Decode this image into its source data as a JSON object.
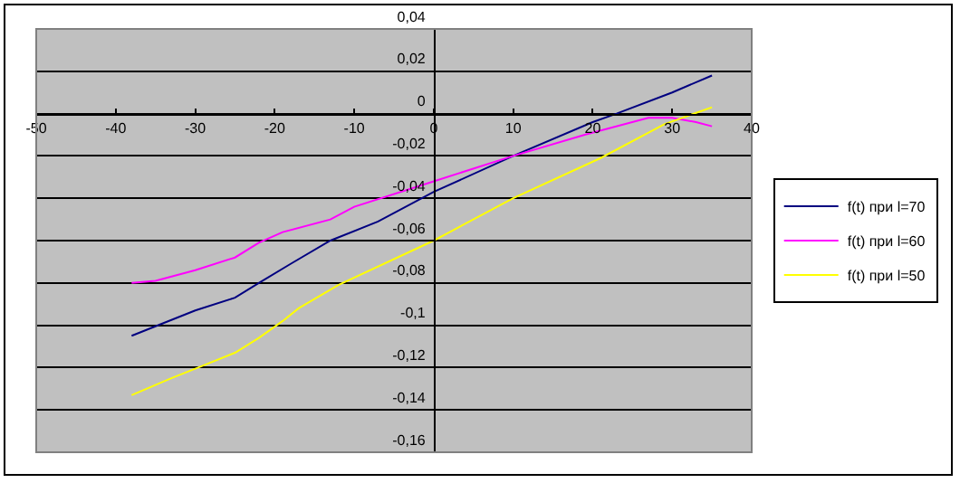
{
  "chart_data": {
    "type": "line",
    "xlim": [
      -50,
      40
    ],
    "xticks": [
      -50,
      -40,
      -30,
      -20,
      -10,
      0,
      10,
      20,
      30,
      40
    ],
    "ylim": [
      -0.16,
      0.04
    ],
    "yticks": [
      {
        "value": 0.04,
        "label": "0,04"
      },
      {
        "value": 0.02,
        "label": "0,02"
      },
      0,
      {
        "value": -0.02,
        "label": "-0,02"
      },
      {
        "value": -0.04,
        "label": "-0,04"
      },
      {
        "value": -0.06,
        "label": "-0,06"
      },
      {
        "value": -0.08,
        "label": "-0,08"
      },
      {
        "value": -0.1,
        "label": "-0,1"
      },
      {
        "value": -0.12,
        "label": "-0,12"
      },
      {
        "value": -0.14,
        "label": "-0,14"
      },
      {
        "value": -0.16,
        "label": "-0,16"
      }
    ],
    "grid": "y",
    "legend": "right",
    "marker": "none",
    "line_style": "solid",
    "series": [
      {
        "name": "f(t) при l=70",
        "color": "#000080",
        "x": [
          -38,
          -34,
          -30,
          -25,
          -22,
          -18,
          -13,
          -7,
          0,
          10,
          20,
          23,
          30,
          35
        ],
        "values": [
          -0.105,
          -0.099,
          -0.093,
          -0.087,
          -0.08,
          -0.071,
          -0.06,
          -0.051,
          -0.037,
          -0.02,
          -0.004,
          0,
          0.01,
          0.018
        ]
      },
      {
        "name": "f(t) при l=60",
        "color": "#ff00ff",
        "x": [
          -38,
          -35,
          -30,
          -25,
          -22,
          -19,
          -13,
          -10,
          0,
          10,
          19,
          27,
          30,
          33,
          35
        ],
        "values": [
          -0.08,
          -0.079,
          -0.074,
          -0.068,
          -0.061,
          -0.056,
          -0.05,
          -0.044,
          -0.032,
          -0.02,
          -0.01,
          -0.002,
          -0.002,
          -0.004,
          -0.006
        ]
      },
      {
        "name": "f(t) при l=50",
        "color": "#ffff00",
        "x": [
          -38,
          -33,
          -29,
          -25,
          -22,
          -19,
          -17,
          -12,
          0,
          10,
          21,
          29,
          35
        ],
        "values": [
          -0.133,
          -0.125,
          -0.119,
          -0.113,
          -0.106,
          -0.098,
          -0.092,
          -0.081,
          -0.06,
          -0.04,
          -0.021,
          -0.005,
          0.003
        ]
      }
    ]
  }
}
